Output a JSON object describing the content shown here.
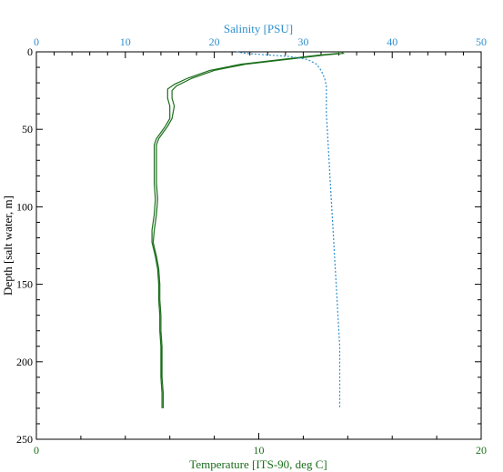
{
  "colors": {
    "temperature": "#1a6e1a",
    "salinity": "#2f8fce",
    "axis": "#000000",
    "background": "#ffffff"
  },
  "chart_data": {
    "type": "line",
    "title": "",
    "grid": false,
    "legend": "none",
    "y_axis": {
      "label": "Depth [salt water, m]",
      "range": [
        0,
        250
      ],
      "inverted": true,
      "ticks": [
        0,
        50,
        100,
        150,
        200,
        250
      ]
    },
    "x_axis_bottom": {
      "label": "Temperature [ITS-90, deg C]",
      "range": [
        0,
        20
      ],
      "ticks": [
        0,
        10,
        20
      ]
    },
    "x_axis_top": {
      "label": "Salinity [PSU]",
      "range": [
        0,
        50
      ],
      "ticks": [
        0,
        10,
        20,
        30,
        40,
        50
      ]
    },
    "series": [
      {
        "axis": "bottom",
        "style": "solid",
        "points": [
          [
            13.7,
            0
          ],
          [
            13.8,
            1
          ],
          [
            13.0,
            2
          ],
          [
            11.2,
            5
          ],
          [
            9.4,
            8
          ],
          [
            8.0,
            12
          ],
          [
            7.0,
            17
          ],
          [
            6.3,
            22
          ],
          [
            6.1,
            25
          ],
          [
            6.1,
            30
          ],
          [
            6.2,
            35
          ],
          [
            6.1,
            43
          ],
          [
            5.9,
            48
          ],
          [
            5.7,
            52
          ],
          [
            5.5,
            56
          ],
          [
            5.4,
            60
          ],
          [
            5.4,
            65
          ],
          [
            5.4,
            75
          ],
          [
            5.4,
            85
          ],
          [
            5.45,
            95
          ],
          [
            5.4,
            105
          ],
          [
            5.3,
            115
          ],
          [
            5.25,
            123
          ],
          [
            5.4,
            132
          ],
          [
            5.5,
            140
          ],
          [
            5.55,
            150
          ],
          [
            5.55,
            160
          ],
          [
            5.6,
            170
          ],
          [
            5.6,
            180
          ],
          [
            5.65,
            190
          ],
          [
            5.65,
            200
          ],
          [
            5.65,
            210
          ],
          [
            5.7,
            220
          ],
          [
            5.7,
            230
          ]
        ]
      },
      {
        "axis": "bottom",
        "style": "solid",
        "points": [
          [
            13.6,
            0
          ],
          [
            13.6,
            1
          ],
          [
            12.8,
            2
          ],
          [
            11.0,
            5
          ],
          [
            9.2,
            8
          ],
          [
            7.8,
            12
          ],
          [
            6.8,
            17
          ],
          [
            6.2,
            21
          ],
          [
            5.9,
            24
          ],
          [
            5.9,
            30
          ],
          [
            6.0,
            35
          ],
          [
            6.0,
            43
          ],
          [
            5.8,
            48
          ],
          [
            5.6,
            52
          ],
          [
            5.4,
            56
          ],
          [
            5.3,
            60
          ],
          [
            5.3,
            65
          ],
          [
            5.3,
            75
          ],
          [
            5.3,
            85
          ],
          [
            5.35,
            95
          ],
          [
            5.3,
            105
          ],
          [
            5.2,
            115
          ],
          [
            5.2,
            123
          ],
          [
            5.35,
            132
          ],
          [
            5.45,
            140
          ],
          [
            5.5,
            150
          ],
          [
            5.5,
            160
          ],
          [
            5.55,
            170
          ],
          [
            5.55,
            180
          ],
          [
            5.6,
            190
          ],
          [
            5.6,
            200
          ],
          [
            5.6,
            210
          ],
          [
            5.65,
            220
          ],
          [
            5.65,
            230
          ]
        ]
      },
      {
        "axis": "top",
        "style": "dotted",
        "points": [
          [
            22.5,
            0
          ],
          [
            23.5,
            1
          ],
          [
            26.0,
            2
          ],
          [
            28.5,
            3
          ],
          [
            30.5,
            5
          ],
          [
            31.5,
            8
          ],
          [
            32.0,
            12
          ],
          [
            32.4,
            17
          ],
          [
            32.6,
            22
          ],
          [
            32.6,
            30
          ],
          [
            32.6,
            40
          ],
          [
            32.7,
            50
          ],
          [
            32.8,
            60
          ],
          [
            32.9,
            70
          ],
          [
            33.0,
            80
          ],
          [
            33.1,
            90
          ],
          [
            33.2,
            100
          ],
          [
            33.3,
            110
          ],
          [
            33.4,
            120
          ],
          [
            33.5,
            130
          ],
          [
            33.6,
            140
          ],
          [
            33.7,
            150
          ],
          [
            33.8,
            160
          ],
          [
            33.9,
            170
          ],
          [
            34.0,
            180
          ],
          [
            34.1,
            190
          ],
          [
            34.1,
            200
          ],
          [
            34.1,
            210
          ],
          [
            34.1,
            220
          ],
          [
            34.1,
            230
          ]
        ]
      }
    ]
  }
}
